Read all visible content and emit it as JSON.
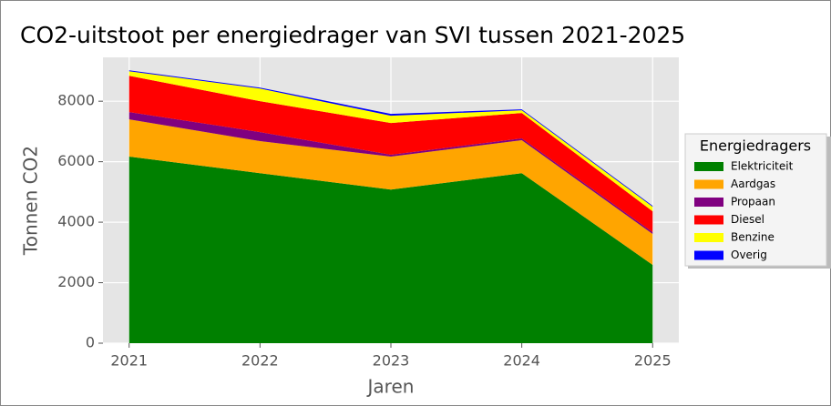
{
  "chart_data": {
    "type": "stacked_area",
    "title": "CO2-uitstoot per energiedrager van SVI tussen 2021-2025",
    "x_label": "Jaren",
    "y_label": "Tonnen CO2",
    "x": [
      2021,
      2022,
      2023,
      2024,
      2025
    ],
    "xlim": [
      2020.8,
      2025.2
    ],
    "xticks": [
      2021,
      2022,
      2023,
      2024,
      2025
    ],
    "ylim": [
      0,
      9450
    ],
    "yticks": [
      0,
      2000,
      4000,
      6000,
      8000
    ],
    "grid": true,
    "legend_title": "Energiedragers",
    "legend_position": "right",
    "series": [
      {
        "name": "Elektriciteit",
        "color": "#008000",
        "values": [
          6170,
          5620,
          5080,
          5620,
          2590
        ]
      },
      {
        "name": "Aardgas",
        "color": "#ffa500",
        "values": [
          1230,
          1060,
          1090,
          1090,
          1020
        ]
      },
      {
        "name": "Propaan",
        "color": "#800080",
        "values": [
          240,
          300,
          60,
          60,
          60
        ]
      },
      {
        "name": "Diesel",
        "color": "#ff0000",
        "values": [
          1200,
          1020,
          1050,
          840,
          690
        ]
      },
      {
        "name": "Benzine",
        "color": "#ffff00",
        "values": [
          150,
          420,
          240,
          90,
          150
        ]
      },
      {
        "name": "Overig",
        "color": "#0000ff",
        "values": [
          30,
          30,
          60,
          30,
          30
        ]
      }
    ]
  }
}
